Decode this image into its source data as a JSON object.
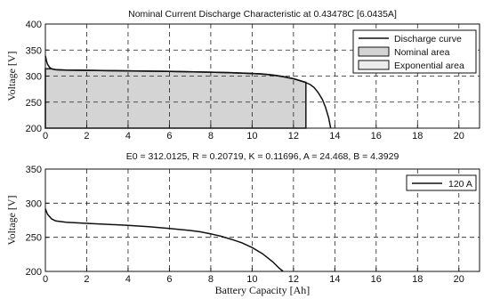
{
  "chart_data": [
    {
      "type": "area",
      "title": "Nominal Current Discharge Characteristic at 0.43478C [6.0435A]",
      "xlabel": "",
      "ylabel": "Voltage [V]",
      "xlim": [
        0,
        21
      ],
      "ylim": [
        200,
        400
      ],
      "xticks": [
        0,
        2,
        4,
        6,
        8,
        10,
        12,
        14,
        16,
        18,
        20
      ],
      "yticks": [
        200,
        250,
        300,
        350,
        400
      ],
      "grid": true,
      "legend_position": "top-right",
      "series": [
        {
          "name": "Discharge curve",
          "kind": "line",
          "x": [
            0,
            0.05,
            0.1,
            0.2,
            0.3,
            0.5,
            0.7,
            1,
            2,
            4,
            6,
            8,
            9,
            10,
            10.5,
            11,
            11.5,
            12,
            12.5,
            12.8,
            13.0,
            13.2,
            13.4,
            13.55,
            13.7,
            13.8
          ],
          "y": [
            339,
            330,
            323,
            317,
            314,
            312.3,
            312,
            311.5,
            311,
            310,
            309,
            307.5,
            306.5,
            305,
            304,
            302,
            299,
            295,
            289,
            284,
            278,
            268,
            255,
            240,
            220,
            200
          ]
        },
        {
          "name": "Nominal area",
          "kind": "fill",
          "color": "#d4d4d4",
          "x": [
            0,
            0.3,
            0.5,
            1,
            2,
            4,
            6,
            8,
            9,
            10,
            10.5,
            11,
            11.5,
            12,
            12.5,
            12.6
          ],
          "y": [
            314,
            314,
            312.3,
            311.5,
            311,
            310,
            309,
            307.5,
            306.5,
            305,
            304,
            302,
            299,
            295,
            289,
            288
          ]
        },
        {
          "name": "Exponential area",
          "kind": "fill",
          "color": "#ececec",
          "x": [],
          "y": []
        }
      ]
    },
    {
      "type": "line",
      "title": "E0 = 312.0125, R = 0.20719, K = 0.11696, A = 24.468, B = 4.3929",
      "xlabel": "Battery Capacity [Ah]",
      "ylabel": "Voltage [V]",
      "xlim": [
        0,
        21
      ],
      "ylim": [
        200,
        350
      ],
      "xticks": [
        0,
        2,
        4,
        6,
        8,
        10,
        12,
        14,
        16,
        18,
        20
      ],
      "yticks": [
        200,
        250,
        300,
        350
      ],
      "grid": true,
      "legend_position": "top-right",
      "series": [
        {
          "name": "120 A",
          "x": [
            0,
            0.1,
            0.3,
            0.5,
            1,
            2,
            3,
            4,
            5,
            6,
            7,
            7.5,
            8,
            8.5,
            9,
            9.5,
            10,
            10.5,
            11,
            11.3,
            11.5
          ],
          "y": [
            292,
            284,
            277,
            274,
            272,
            270.5,
            269,
            267.5,
            265.5,
            263,
            260,
            258,
            255,
            251.5,
            247,
            242,
            235,
            226,
            214,
            205,
            200
          ]
        }
      ]
    }
  ]
}
